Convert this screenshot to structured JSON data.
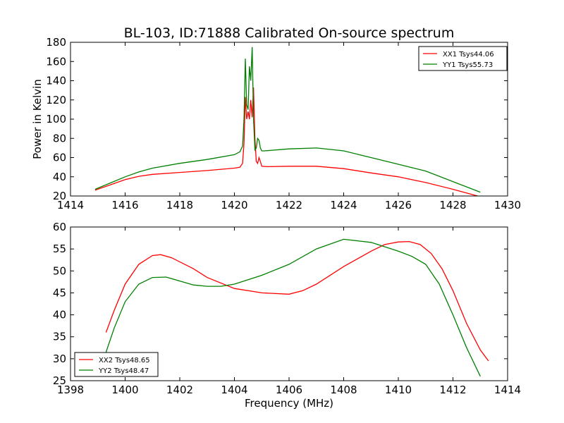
{
  "title": "BL-103, ID:71888 Calibrated On-source spectrum",
  "colors": {
    "xx": "#ff0000",
    "yy": "#008000"
  },
  "chart_data": [
    {
      "type": "line",
      "title": "BL-103, ID:71888 Calibrated On-source spectrum",
      "xlabel": "",
      "ylabel": "Power in Kelvin",
      "xlim": [
        1414,
        1430
      ],
      "ylim": [
        20,
        180
      ],
      "xticks": [
        1414,
        1416,
        1418,
        1420,
        1422,
        1424,
        1426,
        1428,
        1430
      ],
      "yticks": [
        20,
        40,
        60,
        80,
        100,
        120,
        140,
        160,
        180
      ],
      "legend_position": "top-right",
      "series": [
        {
          "name": "XX1 Tsys44.06",
          "color": "#ff0000",
          "x": [
            1414.9,
            1415.5,
            1416,
            1416.5,
            1417,
            1418,
            1419,
            1420,
            1420.2,
            1420.3,
            1420.35,
            1420.4,
            1420.45,
            1420.5,
            1420.55,
            1420.6,
            1420.65,
            1420.7,
            1420.75,
            1420.8,
            1420.85,
            1420.9,
            1420.95,
            1421.0,
            1421.2,
            1422,
            1423,
            1424,
            1425,
            1426,
            1427,
            1428,
            1428.9
          ],
          "y": [
            26,
            32,
            37,
            40.5,
            42.5,
            44.5,
            46.5,
            49,
            50,
            54,
            75,
            123,
            100,
            108,
            100,
            120,
            102,
            133,
            80,
            56,
            54,
            60,
            56,
            51,
            50.5,
            51,
            51,
            48.5,
            44,
            40,
            34,
            27,
            20
          ]
        },
        {
          "name": "YY1 Tsys55.73",
          "color": "#008000",
          "x": [
            1414.9,
            1415.5,
            1416,
            1416.5,
            1417,
            1418,
            1419,
            1420,
            1420.2,
            1420.3,
            1420.35,
            1420.4,
            1420.45,
            1420.5,
            1420.55,
            1420.6,
            1420.65,
            1420.7,
            1420.75,
            1420.8,
            1420.85,
            1420.9,
            1420.95,
            1421.0,
            1421.1,
            1422,
            1423,
            1424,
            1425,
            1426,
            1427,
            1428,
            1429
          ],
          "y": [
            27,
            34,
            40,
            45,
            49,
            54,
            58,
            63,
            66,
            72,
            100,
            163,
            115,
            110,
            155,
            140,
            175,
            100,
            68,
            70,
            80,
            78,
            70,
            67,
            67,
            69,
            70,
            67,
            60,
            53,
            46,
            35,
            24
          ]
        }
      ]
    },
    {
      "type": "line",
      "title": "",
      "xlabel": "Frequency (MHz)",
      "ylabel": "",
      "xlim": [
        1398,
        1414
      ],
      "ylim": [
        25,
        60
      ],
      "xticks": [
        1398,
        1400,
        1402,
        1404,
        1406,
        1408,
        1410,
        1412,
        1414
      ],
      "yticks": [
        25,
        30,
        35,
        40,
        45,
        50,
        55,
        60
      ],
      "legend_position": "bottom-left",
      "series": [
        {
          "name": "XX2 Tsys48.65",
          "color": "#ff0000",
          "x": [
            1399.3,
            1399.6,
            1400,
            1400.5,
            1401,
            1401.3,
            1401.7,
            1402.5,
            1403,
            1404,
            1405,
            1406,
            1406.5,
            1407,
            1408,
            1409,
            1409.5,
            1410,
            1410.4,
            1410.8,
            1411.2,
            1411.6,
            1412,
            1412.5,
            1413,
            1413.3
          ],
          "y": [
            36,
            41,
            47,
            51.5,
            53.5,
            53.7,
            53,
            50.5,
            48.5,
            46,
            45,
            44.7,
            45.5,
            47,
            51,
            54.5,
            56,
            56.6,
            56.7,
            56,
            54,
            50.5,
            45.5,
            38,
            32,
            29.5
          ]
        },
        {
          "name": "YY2 Tsys48.47",
          "color": "#008000",
          "x": [
            1399.3,
            1399.6,
            1400,
            1400.5,
            1401,
            1401.5,
            1402,
            1402.5,
            1403,
            1403.5,
            1404,
            1405,
            1406,
            1407,
            1408,
            1409,
            1410,
            1410.5,
            1411,
            1411.5,
            1412,
            1412.5,
            1413
          ],
          "y": [
            31.5,
            37,
            43,
            47,
            48.5,
            48.6,
            47.7,
            46.8,
            46.5,
            46.5,
            47,
            49,
            51.5,
            55,
            57.2,
            56.5,
            54.5,
            53.3,
            51.5,
            47,
            40,
            32.5,
            26
          ]
        }
      ]
    }
  ]
}
